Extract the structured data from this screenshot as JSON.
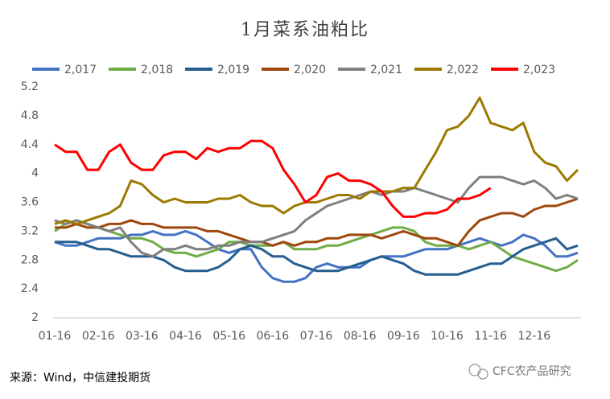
{
  "chart_data": {
    "type": "line",
    "title": "1月菜系油粕比",
    "source": "来源：Wind，中信建投期货",
    "watermark": "CFC农产品研究",
    "grid": false,
    "legend": "top",
    "categories": [
      "01-16",
      null,
      null,
      null,
      "02-16",
      null,
      null,
      null,
      "03-16",
      null,
      null,
      null,
      "04-16",
      null,
      null,
      null,
      "05-16",
      null,
      null,
      null,
      "06-16",
      null,
      null,
      null,
      "07-16",
      null,
      null,
      null,
      "08-16",
      null,
      null,
      null,
      "09-16",
      null,
      null,
      null,
      "10-16",
      null,
      null,
      null,
      "11-16",
      null,
      null,
      null,
      "12-16",
      null,
      null,
      null,
      null
    ],
    "ylim": [
      2,
      5.2
    ],
    "yticks": [
      2,
      2.4,
      2.8,
      3.2,
      3.6,
      4,
      4.4,
      4.8,
      5.2
    ],
    "series": [
      {
        "name": "2,017",
        "color": "#4472c4",
        "values": [
          3.05,
          3.0,
          3.0,
          3.05,
          3.1,
          3.1,
          3.1,
          3.15,
          3.15,
          3.2,
          3.15,
          3.15,
          3.2,
          3.15,
          3.05,
          2.95,
          2.9,
          2.95,
          2.95,
          2.7,
          2.55,
          2.5,
          2.5,
          2.55,
          2.7,
          2.75,
          2.7,
          2.7,
          2.7,
          2.8,
          2.85,
          2.85,
          2.85,
          2.9,
          2.95,
          2.95,
          2.95,
          3.0,
          3.05,
          3.1,
          3.05,
          3.0,
          3.05,
          3.15,
          3.1,
          3.0,
          2.85,
          2.85,
          2.9
        ]
      },
      {
        "name": "2,018",
        "color": "#70ad47",
        "values": [
          3.2,
          3.3,
          3.35,
          3.3,
          3.25,
          3.2,
          3.15,
          3.1,
          3.1,
          3.05,
          2.95,
          2.9,
          2.9,
          2.85,
          2.9,
          2.95,
          3.05,
          3.05,
          3.0,
          3.0,
          3.0,
          3.05,
          2.95,
          2.95,
          2.95,
          3.0,
          3.0,
          3.05,
          3.1,
          3.15,
          3.2,
          3.25,
          3.25,
          3.2,
          3.05,
          3.0,
          3.0,
          3.0,
          2.95,
          3.0,
          3.05,
          2.95,
          2.85,
          2.8,
          2.75,
          2.7,
          2.65,
          2.7,
          2.8
        ]
      },
      {
        "name": "2,019",
        "color": "#255e91",
        "values": [
          3.05,
          3.05,
          3.05,
          3.0,
          2.95,
          2.95,
          2.9,
          2.85,
          2.85,
          2.85,
          2.8,
          2.7,
          2.65,
          2.65,
          2.65,
          2.7,
          2.8,
          2.95,
          3.0,
          2.95,
          2.85,
          2.85,
          2.75,
          2.7,
          2.65,
          2.65,
          2.65,
          2.7,
          2.75,
          2.8,
          2.85,
          2.8,
          2.75,
          2.65,
          2.6,
          2.6,
          2.6,
          2.6,
          2.65,
          2.7,
          2.75,
          2.75,
          2.85,
          2.95,
          3.0,
          3.05,
          3.1,
          2.95,
          3.0
        ]
      },
      {
        "name": "2,020",
        "color": "#9e480e",
        "values": [
          3.25,
          3.25,
          3.3,
          3.25,
          3.25,
          3.3,
          3.3,
          3.35,
          3.3,
          3.3,
          3.25,
          3.25,
          3.25,
          3.25,
          3.2,
          3.2,
          3.15,
          3.1,
          3.05,
          3.05,
          3.0,
          3.05,
          3.0,
          3.05,
          3.05,
          3.1,
          3.1,
          3.15,
          3.15,
          3.15,
          3.1,
          3.15,
          3.2,
          3.15,
          3.1,
          3.1,
          3.05,
          3.0,
          3.2,
          3.35,
          3.4,
          3.45,
          3.45,
          3.4,
          3.5,
          3.55,
          3.55,
          3.6,
          3.65
        ]
      },
      {
        "name": "2,021",
        "color": "#7f7f7f",
        "values": [
          3.35,
          3.3,
          3.35,
          3.3,
          3.25,
          3.2,
          3.25,
          3.05,
          2.9,
          2.85,
          2.95,
          2.95,
          3.0,
          2.95,
          2.95,
          3.0,
          3.0,
          3.05,
          3.05,
          3.05,
          3.1,
          3.15,
          3.2,
          3.35,
          3.45,
          3.55,
          3.6,
          3.65,
          3.7,
          3.75,
          3.7,
          3.75,
          3.75,
          3.8,
          3.75,
          3.7,
          3.65,
          3.6,
          3.8,
          3.95,
          3.95,
          3.95,
          3.9,
          3.85,
          3.9,
          3.8,
          3.65,
          3.7,
          3.65
        ]
      },
      {
        "name": "2,022",
        "color": "#9c7a00",
        "values": [
          3.3,
          3.35,
          3.3,
          3.35,
          3.4,
          3.45,
          3.55,
          3.9,
          3.85,
          3.7,
          3.6,
          3.65,
          3.6,
          3.6,
          3.6,
          3.65,
          3.65,
          3.7,
          3.6,
          3.55,
          3.55,
          3.45,
          3.55,
          3.6,
          3.6,
          3.65,
          3.7,
          3.7,
          3.65,
          3.75,
          3.75,
          3.75,
          3.8,
          3.8,
          4.05,
          4.3,
          4.6,
          4.65,
          4.8,
          5.05,
          4.7,
          4.65,
          4.6,
          4.7,
          4.3,
          4.15,
          4.1,
          3.9,
          4.05
        ]
      },
      {
        "name": "2,023",
        "color": "#ff0000",
        "values": [
          4.4,
          4.3,
          4.3,
          4.05,
          4.05,
          4.3,
          4.4,
          4.15,
          4.05,
          4.05,
          4.25,
          4.3,
          4.3,
          4.2,
          4.35,
          4.3,
          4.35,
          4.35,
          4.45,
          4.45,
          4.35,
          4.05,
          3.85,
          3.6,
          3.7,
          3.95,
          4.0,
          3.9,
          3.9,
          3.85,
          3.75,
          3.55,
          3.4,
          3.4,
          3.45,
          3.45,
          3.5,
          3.65,
          3.65,
          3.7,
          3.8,
          null,
          null,
          null,
          null,
          null,
          null,
          null,
          null
        ]
      }
    ]
  }
}
